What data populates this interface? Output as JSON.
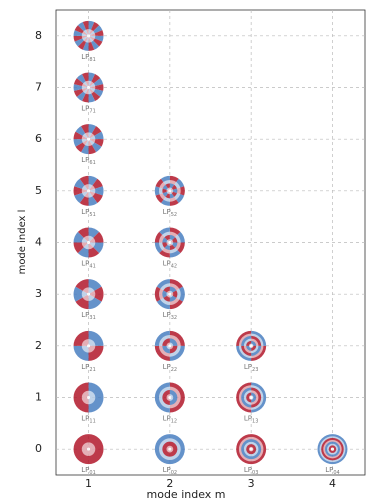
{
  "chart_data": {
    "type": "scatter",
    "xlabel": "mode index m",
    "ylabel": "mode index l",
    "x": [
      1,
      1,
      1,
      1,
      1,
      1,
      1,
      1,
      1,
      2,
      2,
      2,
      2,
      2,
      2,
      3,
      3,
      3,
      4
    ],
    "y": [
      8,
      7,
      6,
      5,
      4,
      3,
      2,
      1,
      0,
      5,
      4,
      3,
      2,
      1,
      0,
      2,
      1,
      0,
      0
    ],
    "point_labels": [
      {
        "text": "LP",
        "sub": "81"
      },
      {
        "text": "LP",
        "sub": "71"
      },
      {
        "text": "LP",
        "sub": "61"
      },
      {
        "text": "LP",
        "sub": "51"
      },
      {
        "text": "LP",
        "sub": "41"
      },
      {
        "text": "LP",
        "sub": "31"
      },
      {
        "text": "LP",
        "sub": "21"
      },
      {
        "text": "LP",
        "sub": "11"
      },
      {
        "text": "LP",
        "sub": "01"
      },
      {
        "text": "LP",
        "sub": "52"
      },
      {
        "text": "LP",
        "sub": "42"
      },
      {
        "text": "LP",
        "sub": "32"
      },
      {
        "text": "LP",
        "sub": "22"
      },
      {
        "text": "LP",
        "sub": "12"
      },
      {
        "text": "LP",
        "sub": "02"
      },
      {
        "text": "LP",
        "sub": "23"
      },
      {
        "text": "LP",
        "sub": "13"
      },
      {
        "text": "LP",
        "sub": "03"
      },
      {
        "text": "LP",
        "sub": "04"
      }
    ],
    "colors": [
      "#b2182b",
      "#4a7fc1"
    ],
    "xlim": [
      0.6,
      4.4
    ],
    "ylim": [
      -0.5,
      8.5
    ],
    "xticks": [
      1,
      2,
      3,
      4
    ],
    "yticks": [
      0,
      1,
      2,
      3,
      4,
      5,
      6,
      7,
      8
    ],
    "grid": true
  }
}
